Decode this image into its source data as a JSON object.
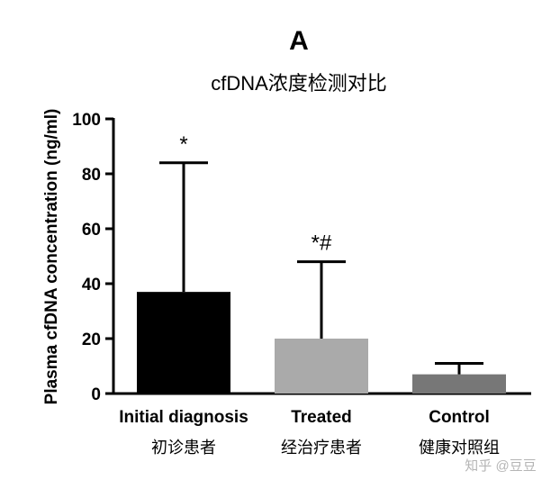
{
  "chart_data": {
    "type": "bar",
    "panel_label": "A",
    "title": "cfDNA浓度检测对比",
    "ylabel": "Plasma cfDNA concentration (ng/ml)",
    "xlabel": "",
    "ylim": [
      0,
      100
    ],
    "yticks": [
      0,
      20,
      40,
      60,
      80,
      100
    ],
    "grid": false,
    "categories": [
      "Initial diagnosis",
      "Treated",
      "Control"
    ],
    "categories_zh": [
      "初诊患者",
      "经治疗患者",
      "健康对照组"
    ],
    "values": [
      37,
      20,
      7
    ],
    "error_upper": [
      84,
      48,
      11
    ],
    "annotations": [
      "*",
      "*#",
      ""
    ],
    "colors": [
      "#000000",
      "#aaaaaa",
      "#777777"
    ]
  },
  "watermark": "知乎 @豆豆"
}
